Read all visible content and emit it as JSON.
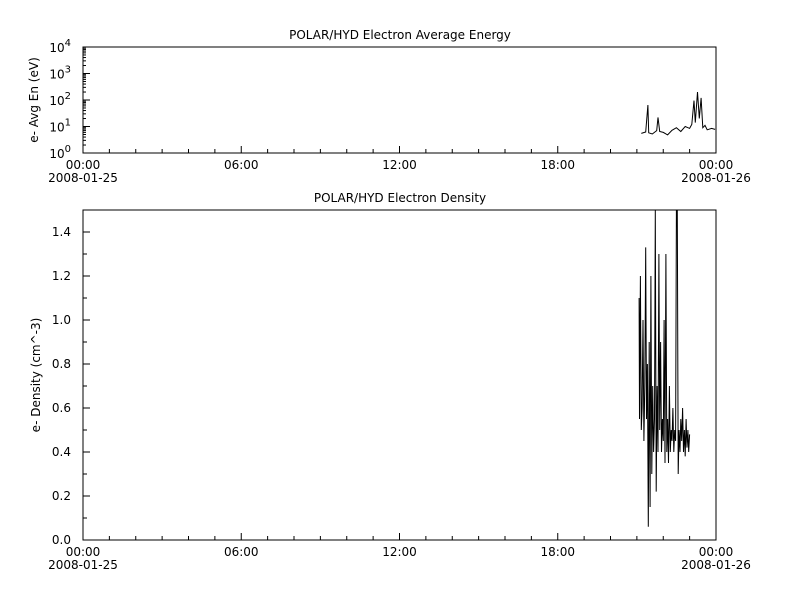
{
  "chart_data": [
    {
      "type": "line",
      "title": "POLAR/HYD  Electron Average Energy",
      "ylabel": "e- Avg En (eV)",
      "yscale": "log",
      "ylim": [
        1,
        10000
      ],
      "y_ticks": [
        {
          "value": 1,
          "base": "10",
          "exp": "0"
        },
        {
          "value": 10,
          "base": "10",
          "exp": "1"
        },
        {
          "value": 100,
          "base": "10",
          "exp": "2"
        },
        {
          "value": 1000,
          "base": "10",
          "exp": "3"
        },
        {
          "value": 10000,
          "base": "10",
          "exp": "4"
        }
      ],
      "xlim": [
        "2008-01-25 00:00",
        "2008-01-26 00:00"
      ],
      "x_ticks": [
        {
          "time": "00:00",
          "date": "2008-01-25"
        },
        {
          "time": "06:00",
          "date": ""
        },
        {
          "time": "12:00",
          "date": ""
        },
        {
          "time": "18:00",
          "date": ""
        },
        {
          "time": "00:00",
          "date": "2008-01-26"
        }
      ],
      "series": [
        {
          "color": "#000000",
          "points": [
            [
              "21:10",
              5.5
            ],
            [
              "21:20",
              6.2
            ],
            [
              "21:25",
              65
            ],
            [
              "21:27",
              5.8
            ],
            [
              "21:35",
              5.2
            ],
            [
              "21:45",
              7.0
            ],
            [
              "21:48",
              22
            ],
            [
              "21:52",
              6.5
            ],
            [
              "22:00",
              6.0
            ],
            [
              "22:10",
              4.8
            ],
            [
              "22:20",
              7.2
            ],
            [
              "22:30",
              9.0
            ],
            [
              "22:40",
              6.5
            ],
            [
              "22:50",
              10
            ],
            [
              "23:00",
              8.5
            ],
            [
              "23:05",
              12
            ],
            [
              "23:10",
              95
            ],
            [
              "23:13",
              14
            ],
            [
              "23:18",
              200
            ],
            [
              "23:22",
              20
            ],
            [
              "23:26",
              120
            ],
            [
              "23:30",
              9
            ],
            [
              "23:35",
              11
            ],
            [
              "23:40",
              7.5
            ],
            [
              "23:50",
              8.5
            ],
            [
              "23:58",
              7.8
            ]
          ]
        }
      ]
    },
    {
      "type": "line",
      "title": "POLAR/HYD  Electron Density",
      "ylabel": "e- Density (cm^-3)",
      "ylim": [
        0,
        1.5
      ],
      "y_ticks": [
        "0.0",
        "0.2",
        "0.4",
        "0.6",
        "0.8",
        "1.0",
        "1.2",
        "1.4"
      ],
      "xlim": [
        "2008-01-25 00:00",
        "2008-01-26 00:00"
      ],
      "x_ticks": [
        {
          "time": "00:00",
          "date": "2008-01-25"
        },
        {
          "time": "06:00",
          "date": ""
        },
        {
          "time": "12:00",
          "date": ""
        },
        {
          "time": "18:00",
          "date": ""
        },
        {
          "time": "00:00",
          "date": "2008-01-26"
        }
      ],
      "series": [
        {
          "color": "#000000",
          "points": [
            [
              "21:05",
              1.1
            ],
            [
              "21:06",
              0.55
            ],
            [
              "21:08",
              1.2
            ],
            [
              "21:10",
              0.5
            ],
            [
              "21:12",
              0.6
            ],
            [
              "21:14",
              1.0
            ],
            [
              "21:16",
              0.45
            ],
            [
              "21:18",
              0.7
            ],
            [
              "21:20",
              1.33
            ],
            [
              "21:22",
              0.55
            ],
            [
              "21:24",
              0.8
            ],
            [
              "21:26",
              0.06
            ],
            [
              "21:28",
              0.9
            ],
            [
              "21:30",
              0.15
            ],
            [
              "21:32",
              1.2
            ],
            [
              "21:34",
              0.3
            ],
            [
              "21:36",
              0.7
            ],
            [
              "21:38",
              0.4
            ],
            [
              "21:40",
              0.55
            ],
            [
              "21:42",
              1.5
            ],
            [
              "21:44",
              0.22
            ],
            [
              "21:46",
              0.7
            ],
            [
              "21:48",
              0.4
            ],
            [
              "21:50",
              1.3
            ],
            [
              "21:52",
              0.5
            ],
            [
              "21:54",
              0.9
            ],
            [
              "21:56",
              0.4
            ],
            [
              "21:58",
              0.55
            ],
            [
              "22:00",
              0.45
            ],
            [
              "22:02",
              1.0
            ],
            [
              "22:04",
              0.35
            ],
            [
              "22:06",
              1.3
            ],
            [
              "22:08",
              0.4
            ],
            [
              "22:10",
              0.55
            ],
            [
              "22:12",
              0.35
            ],
            [
              "22:14",
              0.7
            ],
            [
              "22:16",
              0.4
            ],
            [
              "22:18",
              0.5
            ],
            [
              "22:20",
              0.45
            ],
            [
              "22:22",
              0.6
            ],
            [
              "22:24",
              0.4
            ],
            [
              "22:26",
              0.5
            ],
            [
              "22:28",
              0.45
            ],
            [
              "22:30",
              1.5
            ],
            [
              "22:32",
              1.5
            ],
            [
              "22:34",
              0.3
            ],
            [
              "22:36",
              0.5
            ],
            [
              "22:38",
              0.4
            ],
            [
              "22:40",
              0.55
            ],
            [
              "22:42",
              0.45
            ],
            [
              "22:44",
              0.6
            ],
            [
              "22:46",
              0.4
            ],
            [
              "22:48",
              0.5
            ],
            [
              "22:50",
              0.38
            ],
            [
              "22:52",
              0.55
            ],
            [
              "22:54",
              0.42
            ],
            [
              "22:56",
              0.5
            ],
            [
              "22:58",
              0.4
            ],
            [
              "23:00",
              0.48
            ]
          ]
        }
      ]
    }
  ]
}
